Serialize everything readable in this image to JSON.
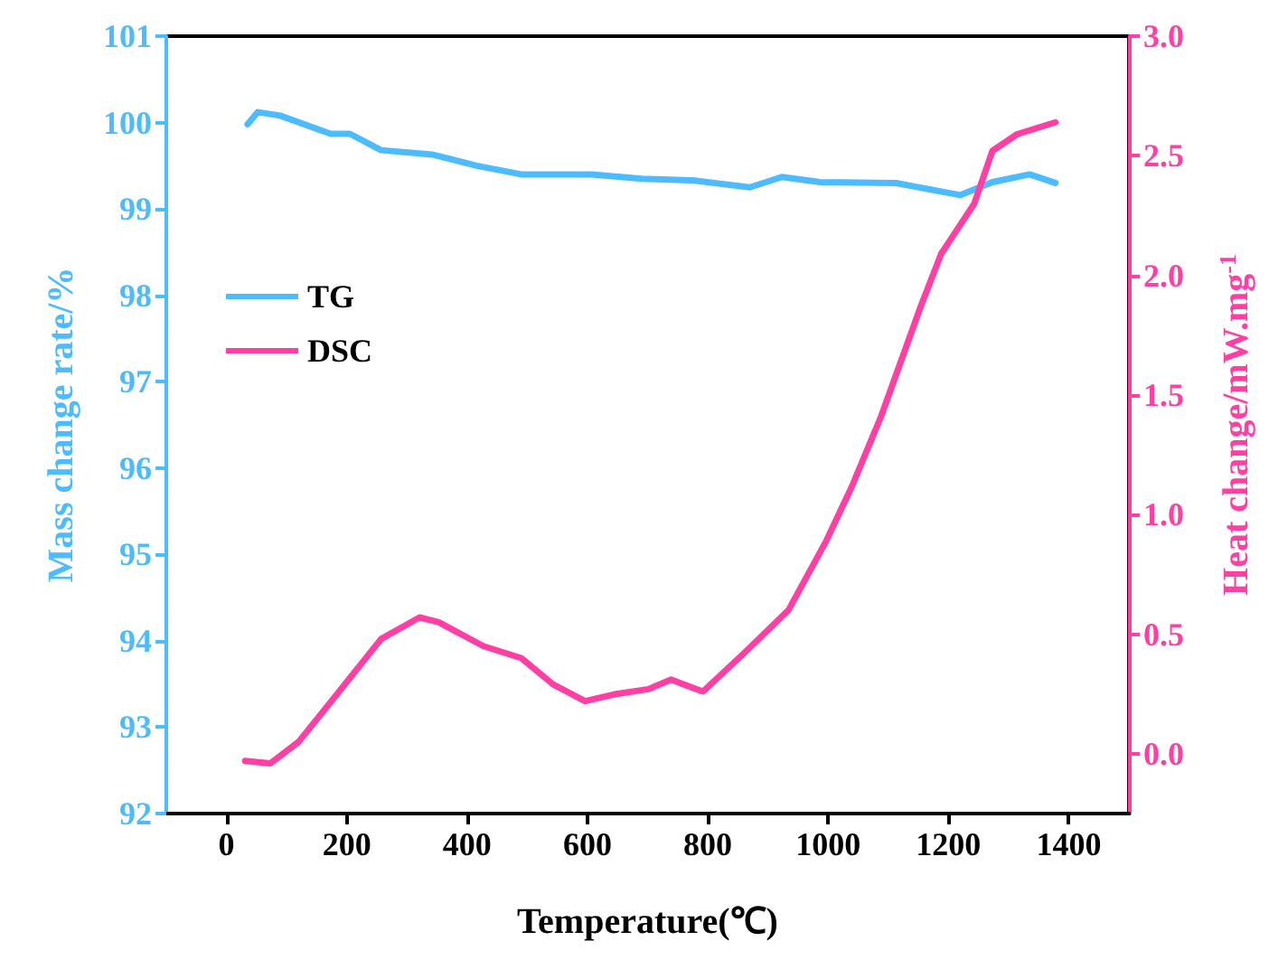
{
  "chart_data": {
    "type": "line",
    "xlabel": "Temperature(℃)",
    "ylabel": "Mass change rate/%",
    "y2label": "Heat change/mW.mg$^{-1}$",
    "xlim": [
      -100,
      1500
    ],
    "xticks": [
      0,
      200,
      400,
      600,
      800,
      1000,
      1200,
      1400
    ],
    "ylim": [
      92,
      101
    ],
    "yticks": [
      92,
      93,
      94,
      95,
      96,
      97,
      98,
      99,
      100,
      101
    ],
    "y2lim": [
      -0.25,
      3.0
    ],
    "y2ticks": [
      {
        "value": 0,
        "label": "0.0"
      },
      0.5,
      {
        "value": 1,
        "label": "1.0"
      },
      1.5,
      {
        "value": 2,
        "label": "2.0"
      },
      2.5,
      {
        "value": 3,
        "label": "3.0"
      }
    ],
    "grid": false,
    "legend": "left",
    "marker": "none",
    "line_style": "solid",
    "series": [
      {
        "name": "TG",
        "color": "#4dbbff",
        "x": [
          35,
          52,
          89,
          173,
          205,
          257,
          342,
          416,
          490,
          607,
          691,
          775,
          870,
          923,
          987,
          1113,
          1220,
          1273,
          1335,
          1378
        ],
        "values": [
          99.98,
          100.12,
          100.08,
          99.87,
          99.87,
          99.68,
          99.63,
          99.5,
          99.4,
          99.4,
          99.35,
          99.33,
          99.25,
          99.37,
          99.31,
          99.3,
          99.16,
          99.31,
          99.4,
          99.3
        ]
      },
      {
        "name": "DSC",
        "color": "#ff3fa4",
        "axis": "y2",
        "x": [
          31,
          73,
          120,
          184,
          257,
          321,
          353,
          427,
          490,
          543,
          596,
          648,
          701,
          739,
          792,
          860,
          934,
          997,
          1040,
          1088,
          1154,
          1188,
          1243,
          1273,
          1314,
          1378
        ],
        "values": [
          -0.03,
          -0.04,
          0.05,
          0.25,
          0.48,
          0.57,
          0.55,
          0.45,
          0.4,
          0.29,
          0.22,
          0.25,
          0.27,
          0.31,
          0.26,
          0.42,
          0.6,
          0.89,
          1.12,
          1.41,
          1.87,
          2.09,
          2.3,
          2.52,
          2.59,
          2.64
        ]
      }
    ]
  }
}
